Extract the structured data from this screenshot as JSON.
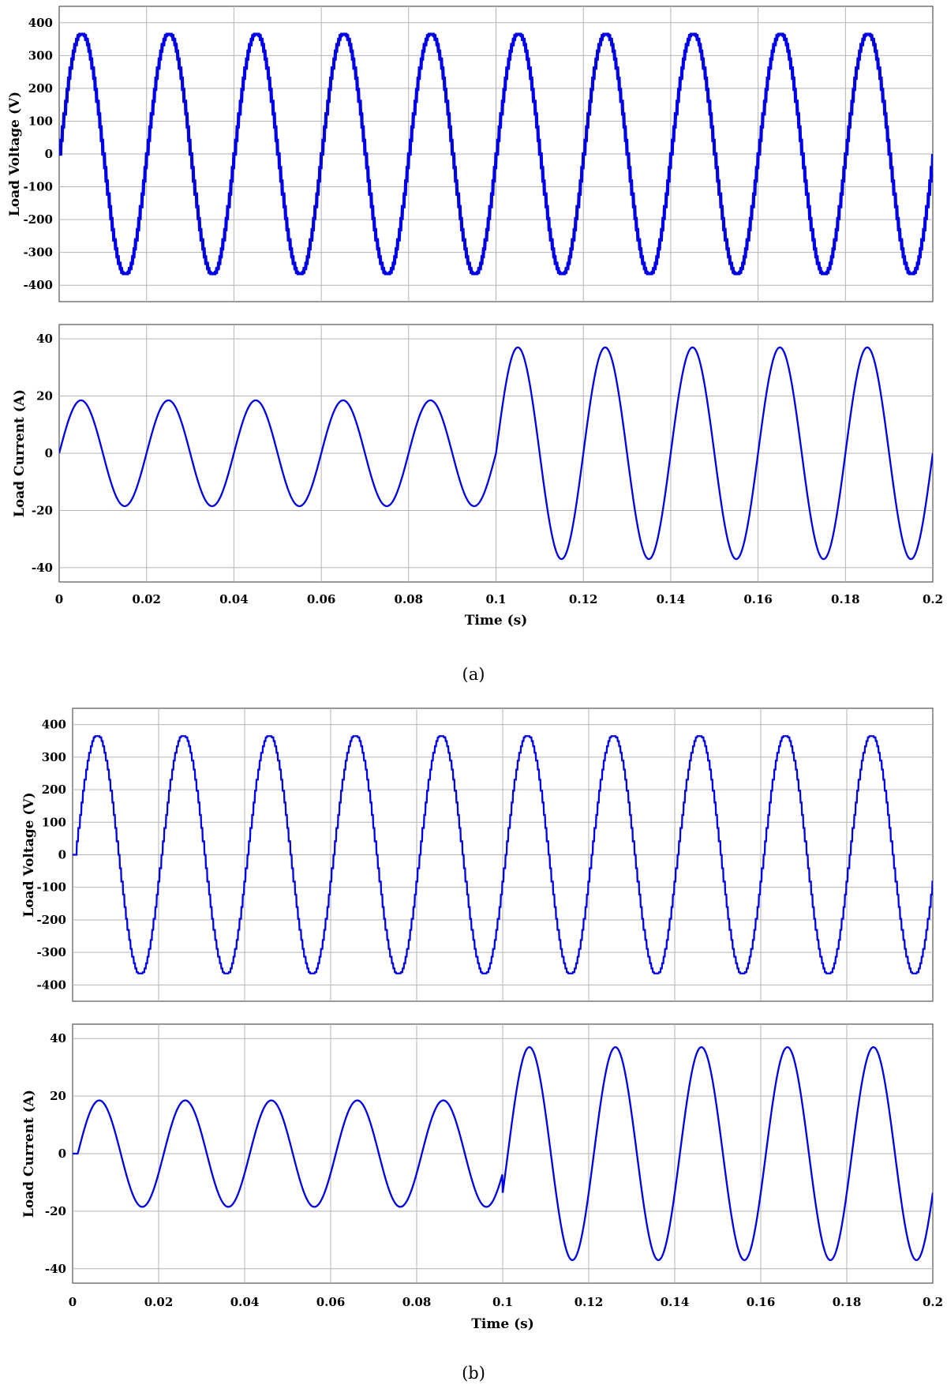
{
  "subfigure_labels": [
    "(a)",
    "(b)"
  ],
  "line_color": "#0000e6",
  "chart_data": [
    {
      "panel": "a-top",
      "type": "line",
      "ylabel": "Load Voltage (V)",
      "xlabel": "",
      "xlim": [
        0,
        0.2
      ],
      "ylim": [
        -450,
        450
      ],
      "yticks": [
        -400,
        -300,
        -200,
        -100,
        0,
        100,
        200,
        300,
        400
      ],
      "xticks": [
        0,
        0.02,
        0.04,
        0.06,
        0.08,
        0.1,
        0.12,
        0.14,
        0.16,
        0.18
      ],
      "grid": true,
      "series": [
        {
          "kind": "stepped-sine",
          "frequency_hz": 50,
          "amplitude": 370,
          "phase_s": 0,
          "steps_per_cycle": 56,
          "thick_trace": true
        }
      ]
    },
    {
      "panel": "a-bottom",
      "type": "line",
      "ylabel": "Load Current (A)",
      "xlabel": "Time (s)",
      "xlim": [
        0,
        0.2
      ],
      "ylim": [
        -45,
        45
      ],
      "yticks": [
        -40,
        -20,
        0,
        20,
        40
      ],
      "xticks": [
        0,
        0.02,
        0.04,
        0.06,
        0.08,
        0.1,
        0.12,
        0.14,
        0.16,
        0.18,
        0.2
      ],
      "xtick_labels": [
        "0",
        "0.02",
        "0.04",
        "0.06",
        "0.08",
        "0.1",
        "0.12",
        "0.14",
        "0.16",
        "0.18",
        "0.2"
      ],
      "grid": true,
      "series": [
        {
          "kind": "sine",
          "frequency_hz": 50,
          "phase_s": 0,
          "segments": [
            {
              "t_start": 0,
              "t_end": 0.1,
              "amplitude": 18.5
            },
            {
              "t_start": 0.1,
              "t_end": 0.2,
              "amplitude": 37
            }
          ]
        }
      ]
    },
    {
      "panel": "b-top",
      "type": "line",
      "ylabel": "Load Voltage (V)",
      "xlabel": "",
      "xlim": [
        0,
        0.2
      ],
      "ylim": [
        -450,
        450
      ],
      "yticks": [
        -400,
        -300,
        -200,
        -100,
        0,
        100,
        200,
        300,
        400
      ],
      "xticks": [
        0,
        0.02,
        0.04,
        0.06,
        0.08,
        0.1,
        0.12,
        0.14,
        0.16,
        0.18
      ],
      "grid": true,
      "series": [
        {
          "kind": "stepped-sine",
          "frequency_hz": 50,
          "amplitude": 370,
          "phase_s": 0.0006,
          "steps_per_cycle": 56,
          "thick_trace": false
        }
      ]
    },
    {
      "panel": "b-bottom",
      "type": "line",
      "ylabel": "Load Current (A)",
      "xlabel": "Time (s)",
      "xlim": [
        0,
        0.2
      ],
      "ylim": [
        -45,
        45
      ],
      "yticks": [
        -40,
        -20,
        0,
        20,
        40
      ],
      "xticks": [
        0,
        0.02,
        0.04,
        0.06,
        0.08,
        0.1,
        0.12,
        0.14,
        0.16,
        0.18,
        0.2
      ],
      "xtick_labels": [
        "0",
        "0.02",
        "0.04",
        "0.06",
        "0.08",
        "0.1",
        "0.12",
        "0.14",
        "0.16",
        "0.18",
        "0.2"
      ],
      "grid": true,
      "series": [
        {
          "kind": "sine",
          "frequency_hz": 50,
          "phase_s": 0.0012,
          "segments": [
            {
              "t_start": 0,
              "t_end": 0.1,
              "amplitude": 18.5
            },
            {
              "t_start": 0.1,
              "t_end": 0.2,
              "amplitude": 37
            }
          ]
        }
      ]
    }
  ]
}
